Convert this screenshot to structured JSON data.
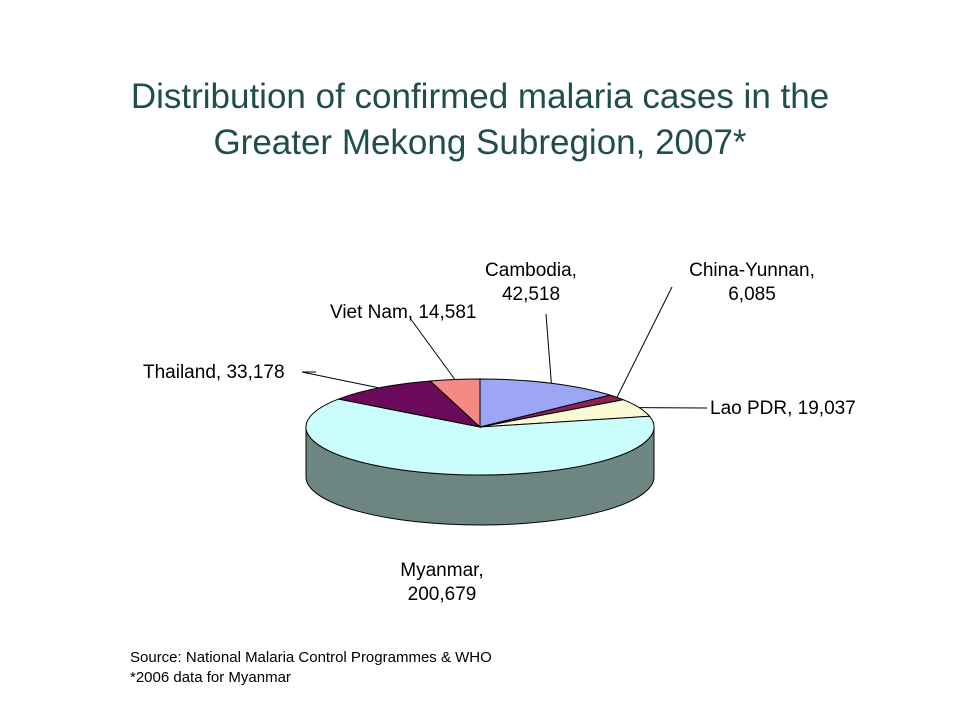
{
  "title_line1": "Distribution of confirmed malaria cases in the",
  "title_line2": "Greater Mekong Subregion, 2007*",
  "source_line1": "Source: National Malaria Control Programmes & WHO",
  "source_line2": "*2006 data for Myanmar",
  "chart_data": {
    "type": "pie",
    "style": "3d",
    "slices": [
      {
        "label_lines": [
          "Cambodia,",
          "42,518"
        ],
        "name": "Cambodia",
        "value": 42518,
        "color": "#9da6f4"
      },
      {
        "label_lines": [
          "China-Yunnan,",
          "6,085"
        ],
        "name": "China-Yunnan",
        "value": 6085,
        "color": "#8b2252"
      },
      {
        "label_lines": [
          "Lao PDR, 19,037"
        ],
        "name": "Lao PDR",
        "value": 19037,
        "color": "#fbfbd3"
      },
      {
        "label_lines": [
          "Myanmar,",
          "200,679"
        ],
        "name": "Myanmar",
        "value": 200679,
        "color": "#ccfdfd"
      },
      {
        "label_lines": [
          "Thailand, 33,178"
        ],
        "name": "Thailand",
        "value": 33178,
        "color": "#6b0a5b"
      },
      {
        "label_lines": [
          "Viet Nam, 14,581"
        ],
        "name": "Viet Nam",
        "value": 14581,
        "color": "#f48a84"
      }
    ],
    "side_color": "#6e8682",
    "legend": "none"
  }
}
